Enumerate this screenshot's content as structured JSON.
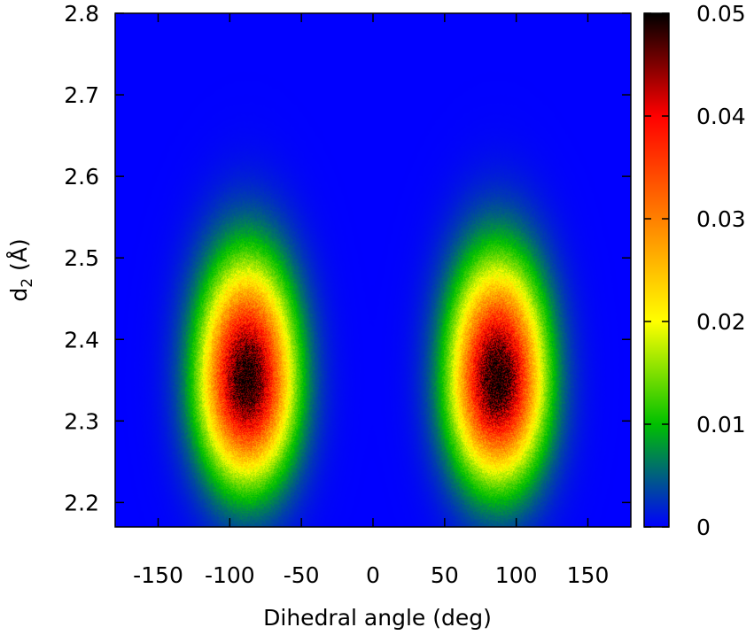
{
  "chart_data": {
    "type": "heatmap",
    "title": "",
    "xlabel": "Dihedral angle (deg)",
    "ylabel_main": "d",
    "ylabel_sub": "2",
    "ylabel_unit": " (Å)",
    "xlim": [
      -180,
      180
    ],
    "ylim": [
      2.17,
      2.8
    ],
    "xticks": [
      -150,
      -100,
      -50,
      0,
      50,
      100,
      150
    ],
    "yticks": [
      2.2,
      2.3,
      2.4,
      2.5,
      2.6,
      2.7,
      2.8
    ],
    "colorbar": {
      "range": [
        0,
        0.05
      ],
      "ticks": [
        0,
        0.01,
        0.02,
        0.03,
        0.04,
        0.05
      ],
      "stops": [
        {
          "value": 0,
          "color": "#0000ff"
        },
        {
          "value": 0.01,
          "color": "#00c000"
        },
        {
          "value": 0.02,
          "color": "#ffff00"
        },
        {
          "value": 0.03,
          "color": "#ff8000"
        },
        {
          "value": 0.04,
          "color": "#ff0000"
        },
        {
          "value": 0.05,
          "color": "#000000"
        }
      ]
    },
    "peaks": [
      {
        "x": -88,
        "y": 2.35,
        "max_value": 0.05,
        "sigma_x": 22,
        "sigma_y": 0.095
      },
      {
        "x": 87,
        "y": 2.35,
        "max_value": 0.05,
        "sigma_x": 22,
        "sigma_y": 0.095
      }
    ],
    "background_value": 0.0,
    "grid": false,
    "legend": "colorbar-right"
  }
}
